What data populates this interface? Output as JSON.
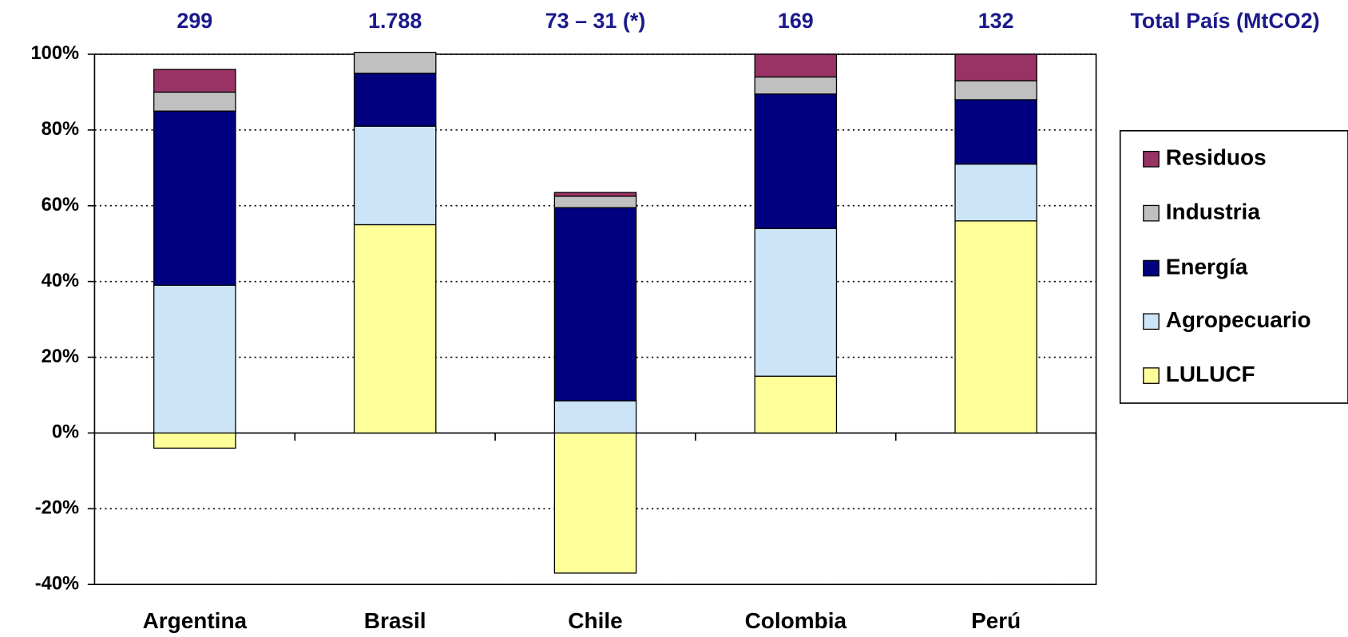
{
  "chart_data": {
    "type": "stacked_bar",
    "top_labels": [
      "299",
      "1.788",
      "73 – 31 (*)",
      "169",
      "132"
    ],
    "top_labels_title": "Total País (MtCO2)",
    "categories": [
      "Argentina",
      "Brasil",
      "Chile",
      "Colombia",
      "Perú"
    ],
    "series": [
      {
        "name": "LULUCF",
        "color": "#ffff99",
        "values": [
          -4,
          55,
          -37,
          15,
          56
        ]
      },
      {
        "name": "Agropecuario",
        "color": "#cce4f8",
        "values": [
          39,
          26,
          8.5,
          39,
          15
        ]
      },
      {
        "name": "Energía",
        "color": "#000080",
        "values": [
          46,
          14,
          51,
          35.5,
          17
        ]
      },
      {
        "name": "Industria",
        "color": "#c0c0c0",
        "values": [
          5,
          5.5,
          3,
          4.5,
          5
        ]
      },
      {
        "name": "Residuos",
        "color": "#993366",
        "values": [
          6,
          0,
          1,
          6,
          7
        ]
      }
    ],
    "ylim": [
      -40,
      100
    ],
    "yticks": [
      {
        "value": -40,
        "label": "-40%"
      },
      {
        "value": -20,
        "label": "-20%"
      },
      {
        "value": 0,
        "label": "0%"
      },
      {
        "value": 20,
        "label": "20%"
      },
      {
        "value": 40,
        "label": "40%"
      },
      {
        "value": 60,
        "label": "60%"
      },
      {
        "value": 80,
        "label": "80%"
      },
      {
        "value": 100,
        "label": "100%"
      }
    ],
    "grid": true,
    "legend": "right"
  }
}
